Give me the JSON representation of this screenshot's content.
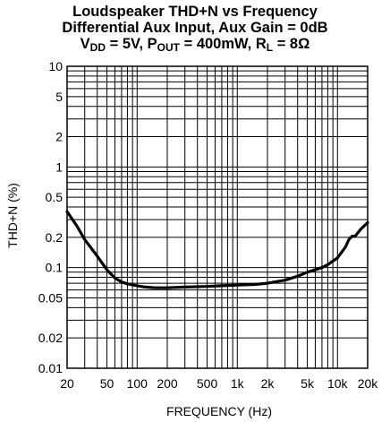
{
  "chart_data": {
    "type": "line",
    "title": {
      "line1": "Loudspeaker THD+N vs Frequency",
      "line2": "Differential Aux Input, Aux Gain = 0dB",
      "line3": {
        "p1": "V",
        "p1sub": "DD",
        "p2": " = 5V, P",
        "p2sub": "OUT",
        "p3": " = 400mW, R",
        "p3sub": "L",
        "p4": " = 8Ω"
      }
    },
    "xlabel": "FREQUENCY (Hz)",
    "ylabel": "THD+N (%)",
    "x_scale": "log",
    "y_scale": "log",
    "xlim": [
      20,
      20000
    ],
    "ylim": [
      0.01,
      10
    ],
    "grid": true,
    "x_ticks": [
      {
        "v": 20,
        "label": "20"
      },
      {
        "v": 50,
        "label": "50"
      },
      {
        "v": 100,
        "label": "100"
      },
      {
        "v": 200,
        "label": "200"
      },
      {
        "v": 500,
        "label": "500"
      },
      {
        "v": 1000,
        "label": "1k"
      },
      {
        "v": 2000,
        "label": "2k"
      },
      {
        "v": 5000,
        "label": "5k"
      },
      {
        "v": 10000,
        "label": "10k"
      },
      {
        "v": 20000,
        "label": "20k"
      }
    ],
    "y_ticks": [
      {
        "v": 0.01,
        "label": "0.01"
      },
      {
        "v": 0.02,
        "label": "0.02"
      },
      {
        "v": 0.05,
        "label": "0.05"
      },
      {
        "v": 0.1,
        "label": "0.1"
      },
      {
        "v": 0.2,
        "label": "0.2"
      },
      {
        "v": 0.5,
        "label": "0.5"
      },
      {
        "v": 1,
        "label": "1"
      },
      {
        "v": 2,
        "label": "2"
      },
      {
        "v": 5,
        "label": "5"
      },
      {
        "v": 10,
        "label": "10"
      }
    ],
    "series": [
      {
        "color": "#000000",
        "x": [
          20,
          25,
          30,
          40,
          50,
          60,
          70,
          80,
          100,
          120,
          150,
          200,
          300,
          500,
          700,
          1000,
          1500,
          2000,
          3000,
          4000,
          5000,
          7000,
          8000,
          10000,
          12000,
          13000,
          14000,
          15000,
          17000,
          20000
        ],
        "y": [
          0.36,
          0.26,
          0.19,
          0.13,
          0.095,
          0.079,
          0.072,
          0.069,
          0.066,
          0.064,
          0.063,
          0.063,
          0.064,
          0.065,
          0.066,
          0.067,
          0.068,
          0.07,
          0.075,
          0.082,
          0.09,
          0.1,
          0.107,
          0.125,
          0.16,
          0.19,
          0.205,
          0.205,
          0.24,
          0.28
        ]
      }
    ]
  }
}
